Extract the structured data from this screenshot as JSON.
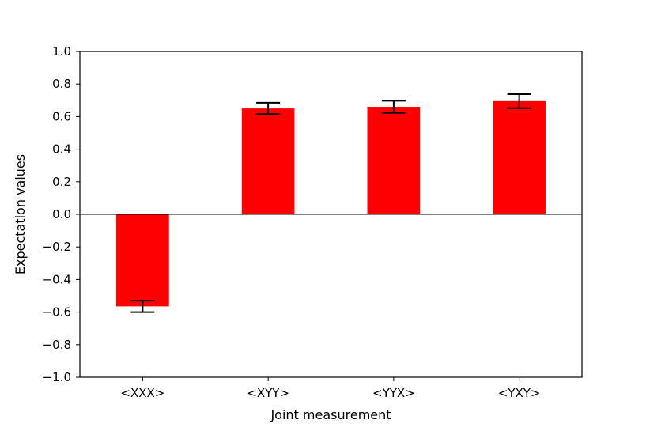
{
  "chart_data": {
    "type": "bar",
    "categories": [
      "<XXX>",
      "<XYY>",
      "<YYX>",
      "<YXY>"
    ],
    "values": [
      -0.565,
      0.65,
      0.66,
      0.695
    ],
    "errors": [
      0.035,
      0.035,
      0.037,
      0.043
    ],
    "xlabel": "Joint measurement",
    "ylabel": "Expectation values",
    "ylim": [
      -1.0,
      1.0
    ],
    "yticks": [
      1.0,
      0.8,
      0.6,
      0.4,
      0.2,
      0.0,
      -0.2,
      -0.4,
      -0.6,
      -0.8,
      -1.0
    ],
    "ytick_labels": [
      "1.0",
      "0.8",
      "0.6",
      "0.4",
      "0.2",
      "0.0",
      "−0.2",
      "−0.4",
      "−0.6",
      "−0.8",
      "−1.0"
    ],
    "bar_color": "#ff0000",
    "error_color": "#000000",
    "zero_line": true,
    "grid": false,
    "legend": false
  }
}
